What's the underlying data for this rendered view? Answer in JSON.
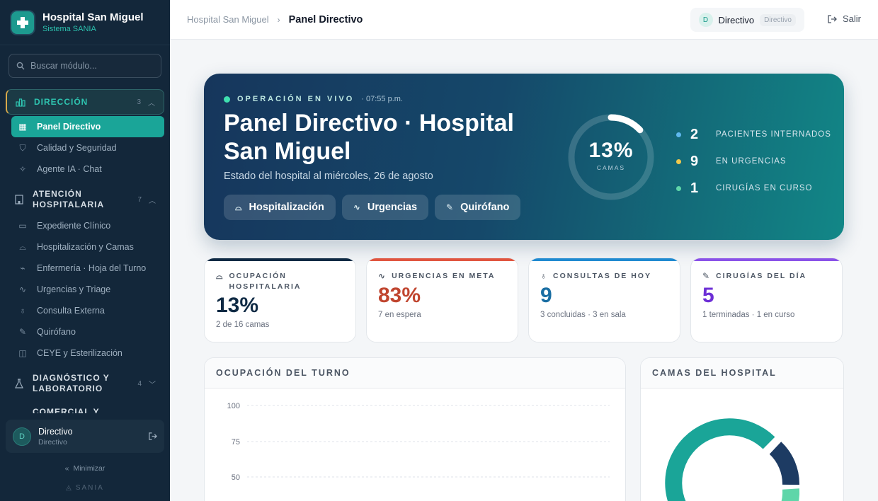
{
  "app": {
    "name": "Hospital San Miguel",
    "system": "Sistema SANIA"
  },
  "sidebar": {
    "search_placeholder": "Buscar módulo...",
    "sections": [
      {
        "label": "DIRECCIÓN",
        "count": "3",
        "items": [
          "Panel Directivo",
          "Calidad y Seguridad",
          "Agente IA · Chat"
        ]
      },
      {
        "label": "ATENCIÓN HOSPITALARIA",
        "count": "7",
        "items": [
          "Expediente Clínico",
          "Hospitalización y Camas",
          "Enfermería · Hoja del Turno",
          "Urgencias y Triage",
          "Consulta Externa",
          "Quirófano",
          "CEYE y Esterilización"
        ]
      },
      {
        "label": "DIAGNÓSTICO Y LABORATORIO",
        "count": "4"
      },
      {
        "label": "COMERCIAL Y"
      }
    ],
    "user": {
      "initial": "D",
      "name": "Directivo",
      "role": "Directivo"
    },
    "minimize": "Minimizar",
    "footer": "SANIA"
  },
  "topbar": {
    "breadcrumb_root": "Hospital San Miguel",
    "breadcrumb_current": "Panel Directivo",
    "user_initial": "D",
    "user_name": "Directivo",
    "user_role": "Directivo",
    "logout": "Salir"
  },
  "hero": {
    "live": "OPERACIÓN EN VIVO",
    "time": "· 07:55 p.m.",
    "title": "Panel Directivo · Hospital San Miguel",
    "subtitle": "Estado del hospital al miércoles, 26 de agosto",
    "buttons": [
      "Hospitalización",
      "Urgencias",
      "Quirófano"
    ],
    "ring_value": "13%",
    "ring_percent": 13,
    "ring_label": "CAMAS",
    "stats": [
      {
        "value": "2",
        "label": "PACIENTES INTERNADOS",
        "color": "#5fb8ee"
      },
      {
        "value": "9",
        "label": "EN URGENCIAS",
        "color": "#f2c94c"
      },
      {
        "value": "1",
        "label": "CIRUGÍAS EN CURSO",
        "color": "#5fd6a9"
      }
    ]
  },
  "kpis": [
    {
      "title": "OCUPACIÓN HOSPITALARIA",
      "value": "13%",
      "sub": "2 de 16 camas",
      "color": "#0f2a44",
      "bar": "#0f2a44"
    },
    {
      "title": "URGENCIAS EN META",
      "value": "83%",
      "sub": "7 en espera",
      "color": "#c0452f",
      "bar": "#e0553f"
    },
    {
      "title": "CONSULTAS DE HOY",
      "value": "9",
      "sub": "3 concluidas · 3 en sala",
      "color": "#1a6ea3",
      "bar": "#1f8ad0"
    },
    {
      "title": "CIRUGÍAS DEL DÍA",
      "value": "5",
      "sub": "1 terminadas · 1 en curso",
      "color": "#6d2fd6",
      "bar": "#8a52e8"
    }
  ],
  "panels": {
    "turno": {
      "title": "OCUPACIÓN DEL TURNO",
      "ticks": [
        "100",
        "75",
        "50"
      ]
    },
    "camas": {
      "title": "CAMAS DEL HOSPITAL"
    }
  }
}
